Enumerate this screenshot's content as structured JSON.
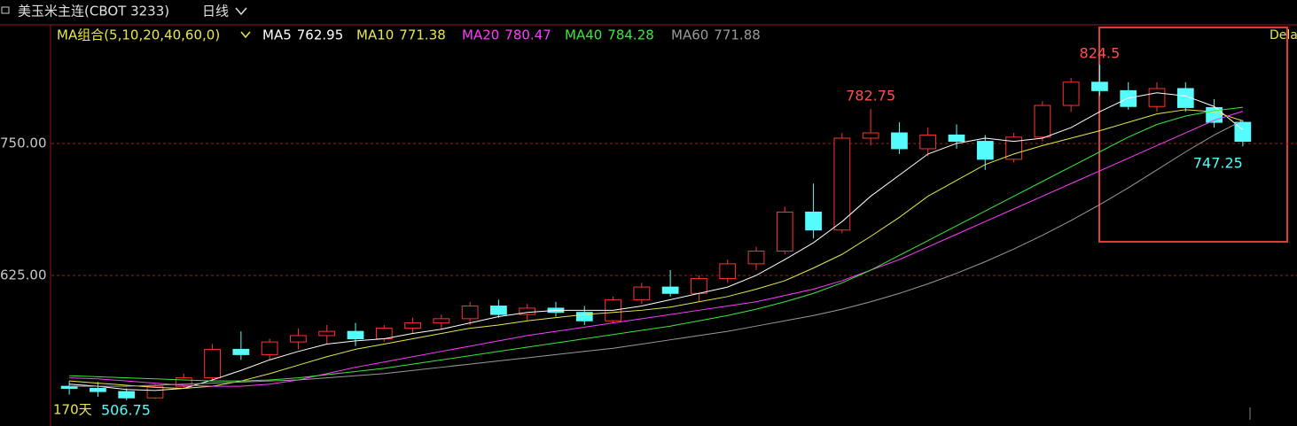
{
  "chart_data": {
    "type": "candlestick",
    "title": "美玉米主连(CBOT 3233)",
    "period": "日线",
    "ma_label": "MA组合(5,10,20,40,60,0)",
    "days_label": "170天",
    "corner_label": "Dela",
    "up_color": "#ff3232",
    "down_color": "#54fcfc",
    "ylim": [
      491.6,
      860.7
    ],
    "yticks": [
      {
        "value": 625,
        "label": "625.00"
      },
      {
        "value": 750,
        "label": "750.00"
      }
    ],
    "grid": true,
    "open": [
      520,
      518,
      515,
      509,
      520,
      528,
      555,
      550,
      562,
      568,
      572,
      565,
      575,
      580,
      584,
      596,
      588,
      594,
      590,
      582,
      602,
      614,
      608,
      622,
      636,
      648,
      685,
      668,
      755,
      760,
      745,
      758,
      752,
      735,
      756,
      786,
      808,
      800,
      785,
      802,
      784,
      770
    ],
    "high": [
      525,
      524,
      518,
      522,
      532,
      560,
      572,
      565,
      575,
      578,
      580,
      578,
      585,
      588,
      600,
      602,
      598,
      600,
      596,
      605,
      618,
      630,
      625,
      640,
      652,
      690,
      712,
      760,
      782.75,
      770,
      765,
      768,
      758,
      760,
      790,
      812,
      824.5,
      808,
      808,
      808,
      792,
      772
    ],
    "low": [
      512,
      510,
      506.75,
      508,
      518,
      526,
      545,
      545,
      555,
      560,
      558,
      562,
      570,
      574,
      578,
      585,
      582,
      586,
      578,
      580,
      598,
      605,
      600,
      618,
      630,
      645,
      660,
      665,
      748,
      740,
      738,
      745,
      725,
      732,
      752,
      780,
      795,
      782,
      780,
      780,
      765,
      747.25
    ],
    "close": [
      518,
      515,
      509,
      520,
      528,
      555,
      550,
      562,
      568,
      572,
      565,
      575,
      580,
      584,
      596,
      588,
      594,
      590,
      582,
      602,
      614,
      608,
      622,
      636,
      648,
      685,
      668,
      755,
      760,
      745,
      758,
      752,
      735,
      756,
      786,
      808,
      800,
      785,
      802,
      784,
      770,
      752
    ],
    "series": [
      {
        "name": "MA5",
        "color": "#ffffff",
        "values": [
          522,
          520,
          517,
          516,
          518,
          526,
          535,
          545,
          553,
          560,
          563,
          565,
          570,
          574,
          580,
          586,
          590,
          592,
          592,
          592,
          596,
          602,
          608,
          614,
          625,
          640,
          656,
          676,
          700,
          720,
          740,
          750,
          755,
          752,
          755,
          765,
          780,
          793,
          798,
          795,
          785,
          762.95
        ]
      },
      {
        "name": "MA10",
        "color": "#e8e84a",
        "values": [
          525,
          523,
          521,
          519,
          518,
          520,
          525,
          532,
          540,
          548,
          555,
          560,
          565,
          570,
          575,
          578,
          582,
          585,
          588,
          590,
          592,
          595,
          600,
          605,
          612,
          620,
          632,
          645,
          662,
          680,
          700,
          715,
          730,
          740,
          748,
          755,
          762,
          770,
          778,
          782,
          780,
          771.38
        ]
      },
      {
        "name": "MA20",
        "color": "#ff3cff",
        "values": [
          528,
          527,
          525,
          523,
          521,
          520,
          520,
          522,
          526,
          532,
          538,
          543,
          548,
          553,
          558,
          563,
          568,
          572,
          576,
          580,
          584,
          588,
          592,
          596,
          600,
          606,
          612,
          620,
          630,
          640,
          652,
          664,
          676,
          688,
          700,
          712,
          724,
          736,
          748,
          760,
          772,
          780.47
        ]
      },
      {
        "name": "MA40",
        "color": "#3ce83c",
        "values": [
          530,
          529,
          528,
          527,
          526,
          525,
          525,
          526,
          528,
          531,
          534,
          537,
          541,
          545,
          549,
          553,
          557,
          561,
          565,
          569,
          573,
          577,
          582,
          587,
          593,
          600,
          608,
          618,
          630,
          644,
          658,
          672,
          686,
          700,
          714,
          728,
          742,
          756,
          768,
          776,
          781,
          784.28
        ]
      },
      {
        "name": "MA60",
        "color": "#9a9a9a",
        "values": [
          520,
          520,
          520,
          521,
          522,
          523,
          524,
          525,
          526,
          528,
          530,
          532,
          535,
          538,
          541,
          544,
          547,
          550,
          553,
          556,
          560,
          564,
          568,
          572,
          577,
          582,
          587,
          593,
          600,
          608,
          617,
          627,
          638,
          650,
          663,
          677,
          692,
          708,
          725,
          742,
          758,
          771.88
        ]
      }
    ]
  }
}
